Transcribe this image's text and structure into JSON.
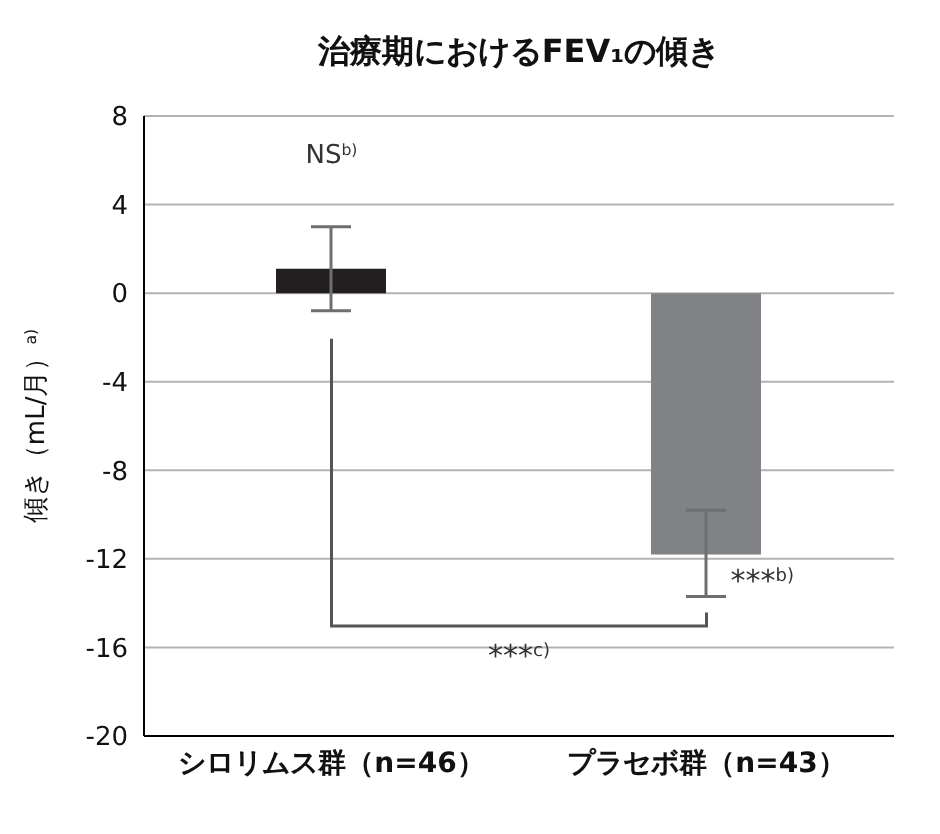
{
  "chart_data": {
    "type": "bar",
    "title": "治療期におけるFEV₁の傾き",
    "ylabel": "傾き（mL/月）$^{a)}$",
    "categories": [
      "シロリムス群（n=46）",
      "プラセボ群（n=43）"
    ],
    "values": [
      1.1,
      -11.8
    ],
    "colors": [
      "#231f20",
      "#808285"
    ],
    "errors": [
      [
        -0.8,
        3.0
      ],
      [
        -13.7,
        -9.8
      ]
    ],
    "ylim": [
      -20,
      8
    ],
    "yticks": [
      8,
      4,
      0,
      -4,
      -8,
      -12,
      -16,
      -20
    ],
    "grid": "y",
    "legend": false,
    "annotations": [
      "NS$^{b)}$",
      {
        "text": "***$^{b)}$",
        "x": "プラセボ群（n=43）",
        "y": -13
      },
      "***$^{c)}$"
    ]
  }
}
